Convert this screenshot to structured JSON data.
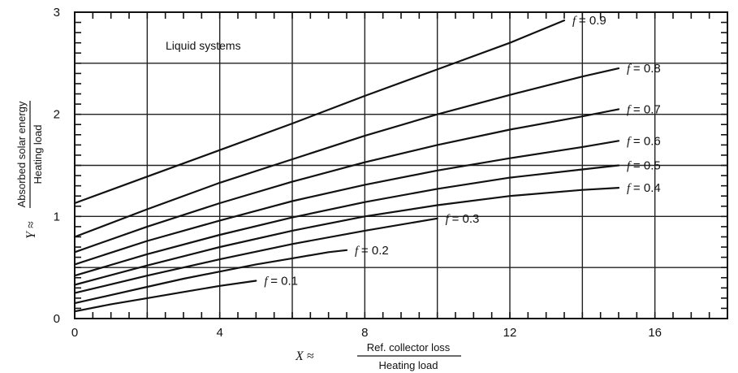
{
  "chart_data": {
    "type": "line",
    "annotation": "Liquid systems",
    "xlabel": {
      "prefix": "X ≈",
      "numerator": "Ref. collector loss",
      "denominator": "Heating load"
    },
    "ylabel": {
      "prefix": "Y ≈",
      "numerator": "Absorbed solar energy",
      "denominator": "Heating load"
    },
    "xlim": [
      0,
      18
    ],
    "ylim": [
      0,
      3
    ],
    "x_ticks": [
      0,
      4,
      8,
      12,
      16
    ],
    "y_ticks": [
      0,
      1,
      2,
      3
    ],
    "x_gridlines": [
      2,
      4,
      6,
      8,
      10,
      12,
      14,
      16
    ],
    "y_gridlines": [
      0.5,
      1.0,
      1.5,
      2.0,
      2.5
    ],
    "grid": true,
    "series": [
      {
        "name": "f = 0.1",
        "label_var": "f",
        "label_val": "= 0.1",
        "x": [
          0,
          1,
          2,
          3,
          4,
          5
        ],
        "y": [
          0.07,
          0.14,
          0.2,
          0.26,
          0.32,
          0.37
        ]
      },
      {
        "name": "f = 0.2",
        "label_var": "f",
        "label_val": "= 0.2",
        "x": [
          0,
          1,
          2,
          3,
          4,
          5,
          6,
          7,
          7.5
        ],
        "y": [
          0.15,
          0.23,
          0.31,
          0.39,
          0.46,
          0.53,
          0.59,
          0.65,
          0.67
        ]
      },
      {
        "name": "f = 0.3",
        "label_var": "f",
        "label_val": "= 0.3",
        "x": [
          0,
          2,
          4,
          6,
          8,
          10
        ],
        "y": [
          0.25,
          0.42,
          0.58,
          0.73,
          0.86,
          0.98
        ]
      },
      {
        "name": "f = 0.4",
        "label_var": "f",
        "label_val": "= 0.4",
        "x": [
          0,
          2,
          4,
          6,
          8,
          10,
          12,
          14,
          15
        ],
        "y": [
          0.33,
          0.52,
          0.7,
          0.86,
          1.0,
          1.11,
          1.2,
          1.26,
          1.28
        ]
      },
      {
        "name": "f = 0.5",
        "label_var": "f",
        "label_val": "= 0.5",
        "x": [
          0,
          2,
          4,
          6,
          8,
          10,
          12,
          14,
          15
        ],
        "y": [
          0.42,
          0.63,
          0.82,
          0.99,
          1.14,
          1.27,
          1.38,
          1.46,
          1.5
        ]
      },
      {
        "name": "f = 0.6",
        "label_var": "f",
        "label_val": "= 0.6",
        "x": [
          0,
          2,
          4,
          6,
          8,
          10,
          12,
          14,
          15
        ],
        "y": [
          0.53,
          0.76,
          0.96,
          1.15,
          1.31,
          1.45,
          1.57,
          1.68,
          1.74
        ]
      },
      {
        "name": "f = 0.7",
        "label_var": "f",
        "label_val": "= 0.7",
        "x": [
          0,
          2,
          4,
          6,
          8,
          10,
          12,
          14,
          15
        ],
        "y": [
          0.65,
          0.9,
          1.13,
          1.34,
          1.53,
          1.7,
          1.85,
          1.98,
          2.05
        ]
      },
      {
        "name": "f = 0.8",
        "label_var": "f",
        "label_val": "= 0.8",
        "x": [
          0,
          2,
          4,
          6,
          8,
          10,
          12,
          14,
          15
        ],
        "y": [
          0.8,
          1.07,
          1.33,
          1.56,
          1.79,
          2.0,
          2.19,
          2.37,
          2.45
        ]
      },
      {
        "name": "f = 0.9",
        "label_var": "f",
        "label_val": "= 0.9",
        "x": [
          0,
          2,
          4,
          6,
          8,
          10,
          12,
          13.5
        ],
        "y": [
          1.13,
          1.39,
          1.65,
          1.91,
          2.18,
          2.44,
          2.7,
          2.92
        ]
      }
    ]
  }
}
